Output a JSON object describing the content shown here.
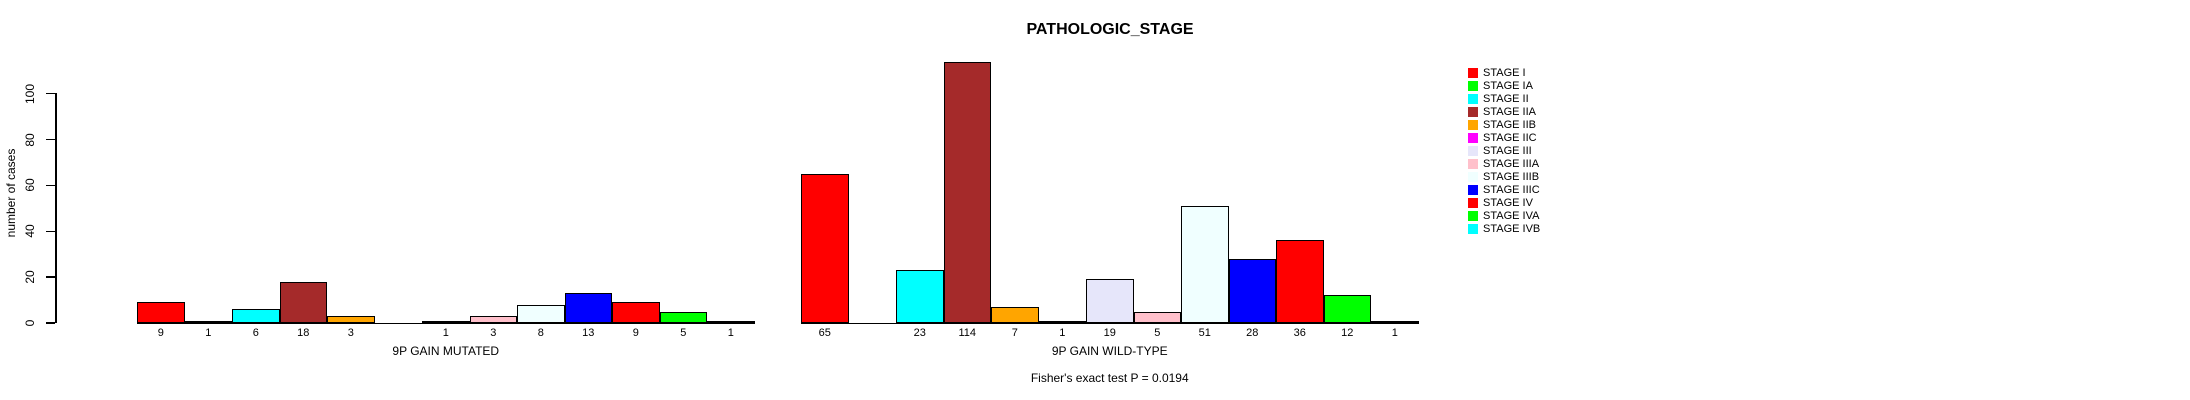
{
  "chart_data": {
    "type": "bar",
    "title": "PATHOLOGIC_STAGE",
    "ylabel": "number of cases",
    "y_ticks": [
      0,
      20,
      40,
      60,
      80,
      100
    ],
    "ylim": [
      0,
      115
    ],
    "grid": false,
    "legend_position": "right",
    "stages": [
      "STAGE I",
      "STAGE IA",
      "STAGE II",
      "STAGE IIA",
      "STAGE IIB",
      "STAGE IIC",
      "STAGE III",
      "STAGE IIIA",
      "STAGE IIIB",
      "STAGE IIIC",
      "STAGE IV",
      "STAGE IVA",
      "STAGE IVB"
    ],
    "colors": [
      "#FF0000",
      "#00FF00",
      "#00FFFF",
      "#A52A2A",
      "#FFA500",
      "#FF00FF",
      "#E6E6FA",
      "#FFC0CB",
      "#F0FFFF",
      "#0000FF",
      "#FF0000",
      "#00FF00",
      "#00FFFF"
    ],
    "groups": [
      {
        "label": "9P GAIN MUTATED",
        "values": [
          9,
          1,
          6,
          18,
          3,
          0,
          1,
          3,
          8,
          13,
          9,
          5,
          1
        ]
      },
      {
        "label": "9P GAIN WILD-TYPE",
        "values": [
          65,
          0,
          23,
          114,
          7,
          1,
          19,
          5,
          51,
          28,
          36,
          12,
          1
        ]
      }
    ],
    "annotation": "Fisher's exact test P = 0.0194",
    "bar_outline_color": "#000000",
    "background_color": "#FFFFFF"
  }
}
